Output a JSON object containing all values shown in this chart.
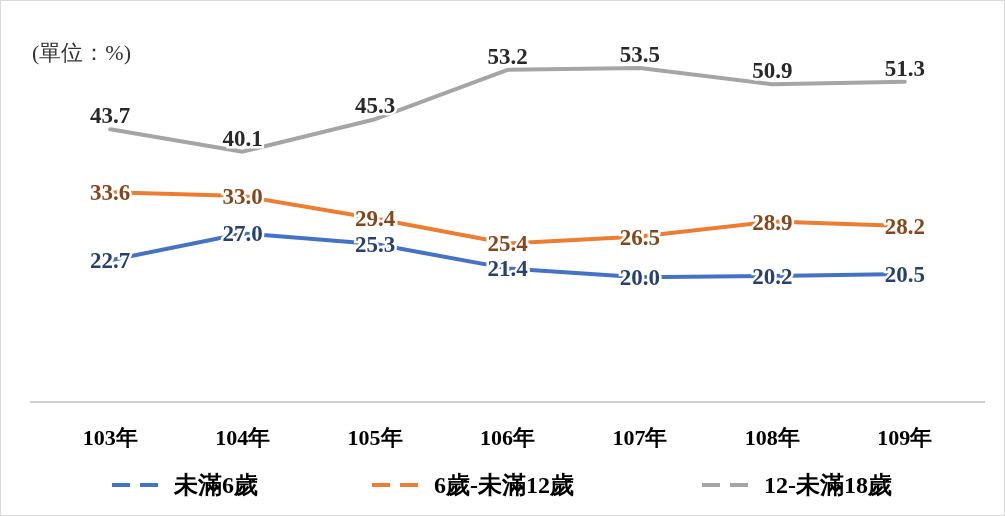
{
  "chart_data": {
    "type": "line",
    "categories": [
      "103年",
      "104年",
      "105年",
      "106年",
      "107年",
      "108年",
      "109年"
    ],
    "series": [
      {
        "name": "未滿6歲",
        "color": "#4472c4",
        "values": [
          22.7,
          27.0,
          25.3,
          21.4,
          20.0,
          20.2,
          20.5
        ],
        "value_labels": [
          "22.7",
          "27.0",
          "25.3",
          "21.4",
          "20.0",
          "20.2",
          "20.5"
        ]
      },
      {
        "name": "6歲-未滿12歲",
        "color": "#ed7d31",
        "values": [
          33.6,
          33.0,
          29.4,
          25.4,
          26.5,
          28.9,
          28.2
        ],
        "value_labels": [
          "33.6",
          "33.0",
          "29.4",
          "25.4",
          "26.5",
          "28.9",
          "28.2"
        ]
      },
      {
        "name": "12-未滿18歲",
        "color": "#a5a5a5",
        "values": [
          43.7,
          40.1,
          45.3,
          53.2,
          53.5,
          50.9,
          51.3
        ],
        "value_labels": [
          "43.7",
          "40.1",
          "45.3",
          "53.2",
          "53.5",
          "50.9",
          "51.3"
        ]
      }
    ],
    "tick_labels": "x",
    "legend": "bottom",
    "marker": "none",
    "line_style": "solid",
    "annotations": [
      "(單位：%)"
    ]
  }
}
